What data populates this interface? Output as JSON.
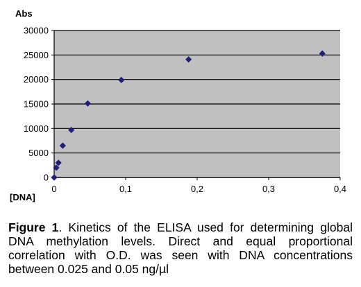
{
  "chart_data": {
    "type": "scatter",
    "title": "",
    "xlabel": "[DNA]",
    "ylabel": "Abs",
    "xlim": [
      0,
      0.4
    ],
    "ylim": [
      0,
      30000
    ],
    "x_ticks": [
      0,
      0.1,
      0.2,
      0.3,
      0.4
    ],
    "x_tick_labels": [
      "0",
      "0,1",
      "0,2",
      "0,3",
      "0,4"
    ],
    "y_ticks": [
      0,
      5000,
      10000,
      15000,
      20000,
      25000,
      30000
    ],
    "y_tick_labels": [
      "0",
      "5000",
      "10000",
      "15000",
      "20000",
      "25000",
      "30000"
    ],
    "grid": "horizontal",
    "plot_background": "#c0c0c0",
    "marker_color": "#1f1f78",
    "points": [
      {
        "x": 0,
        "y": 0
      },
      {
        "x": 0.003,
        "y": 2000
      },
      {
        "x": 0.006,
        "y": 3000
      },
      {
        "x": 0.012,
        "y": 6500
      },
      {
        "x": 0.024,
        "y": 9700
      },
      {
        "x": 0.047,
        "y": 15100
      },
      {
        "x": 0.094,
        "y": 19900
      },
      {
        "x": 0.188,
        "y": 24100
      },
      {
        "x": 0.375,
        "y": 25300
      }
    ]
  },
  "caption": {
    "label": "Figure 1",
    "text": ". Kinetics of the ELISA used for determining global DNA methylation levels. Direct and equal proportional correlation with O.D. was seen with DNA concentrations between 0.025 and 0.05 ng/µl"
  }
}
